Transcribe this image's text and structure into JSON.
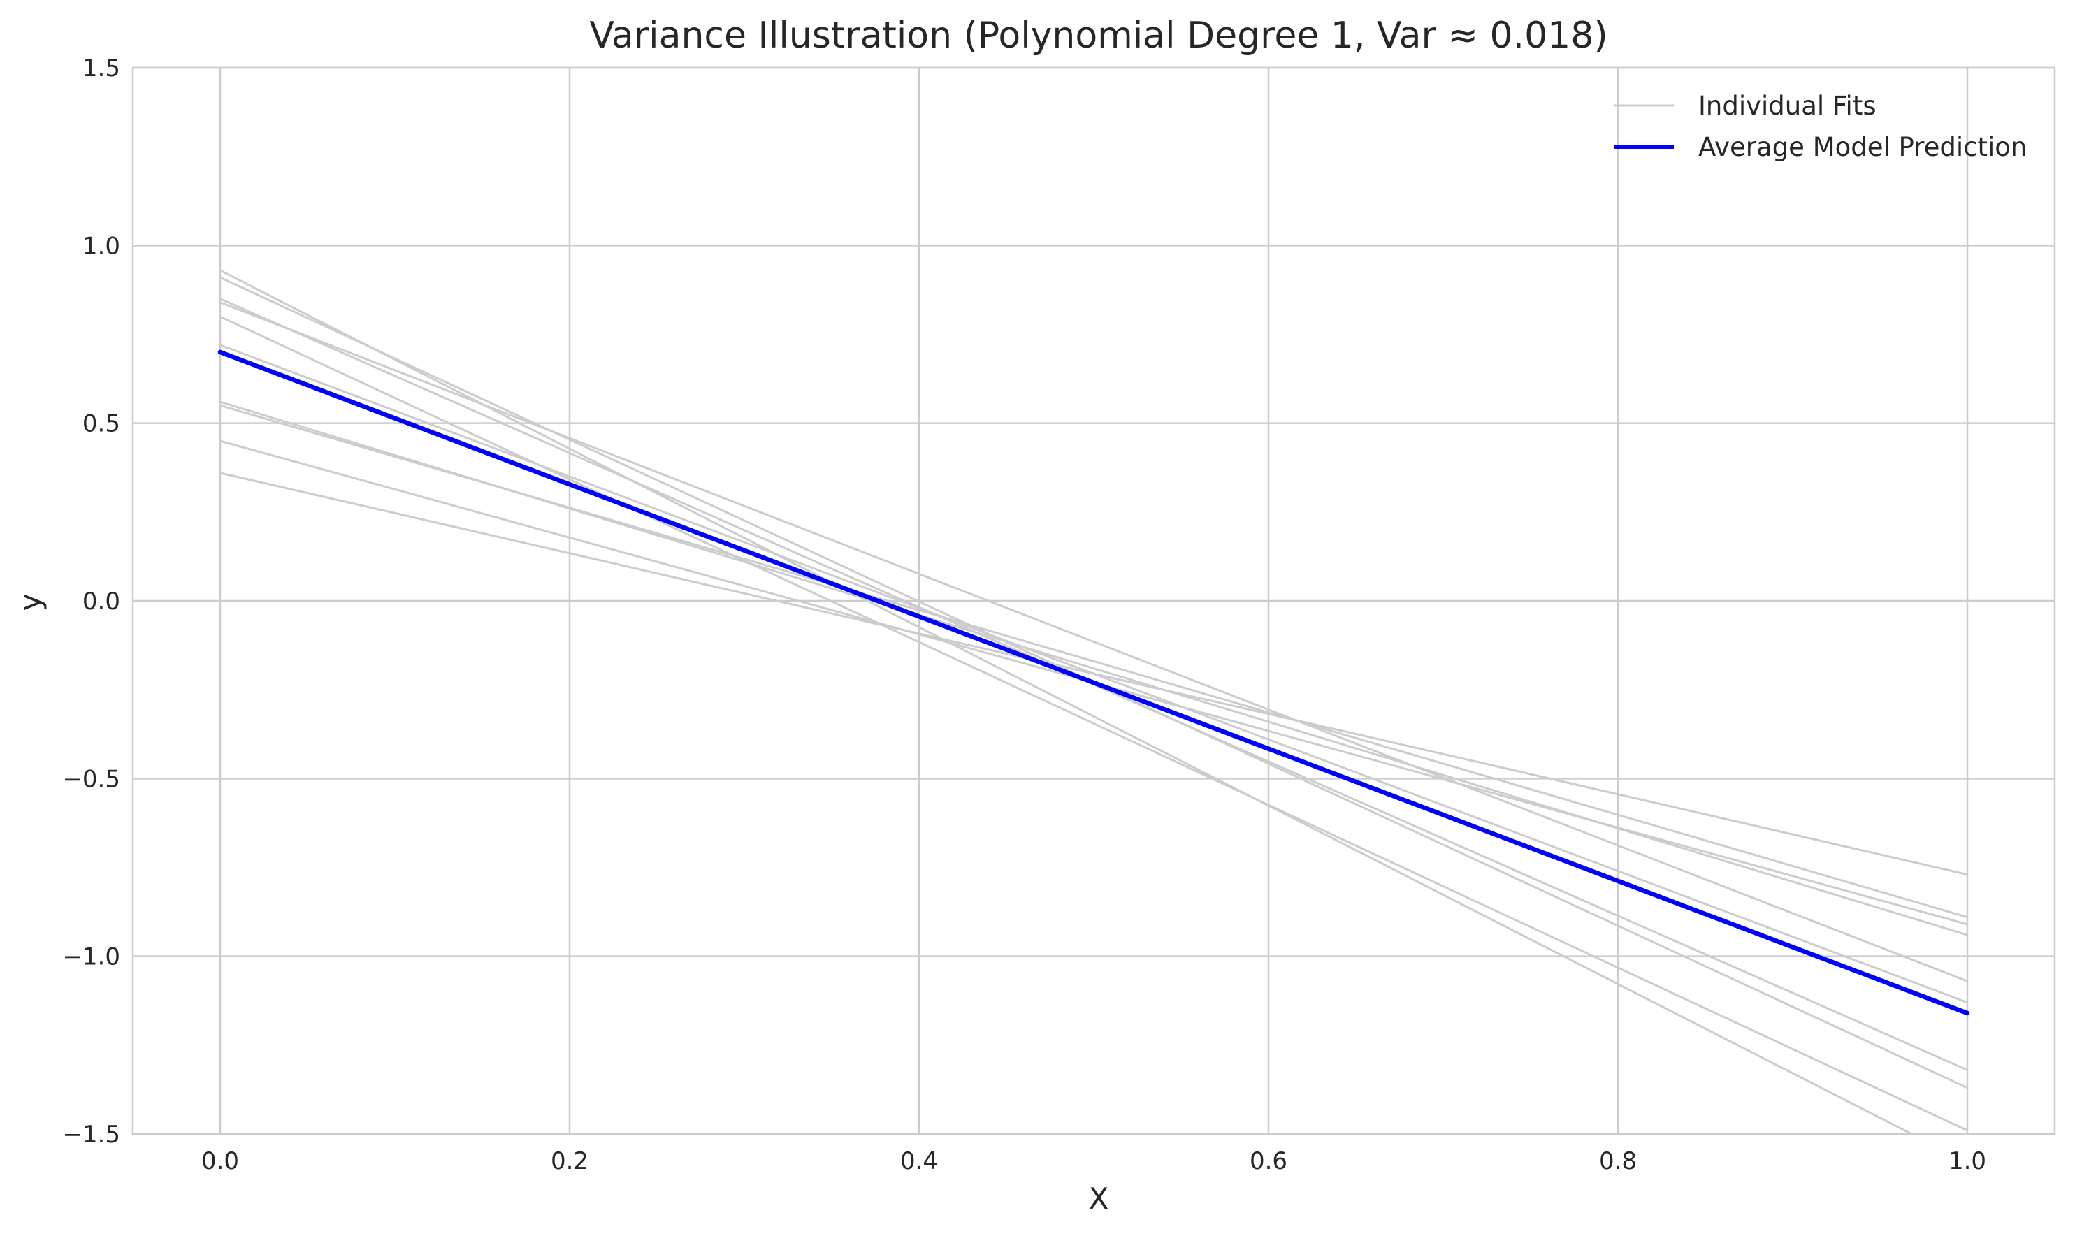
{
  "chart_data": {
    "type": "line",
    "title": "Variance Illustration (Polynomial Degree 1, Var ≈ 0.018)",
    "xlabel": "X",
    "ylabel": "y",
    "xlim": [
      -0.05,
      1.05
    ],
    "ylim": [
      -1.5,
      1.5
    ],
    "xticks": [
      0.0,
      0.2,
      0.4,
      0.6,
      0.8,
      1.0
    ],
    "xtick_labels": [
      "0.0",
      "0.2",
      "0.4",
      "0.6",
      "0.8",
      "1.0"
    ],
    "yticks": [
      -1.5,
      -1.0,
      -0.5,
      0.0,
      0.5,
      1.0,
      1.5
    ],
    "ytick_labels": [
      "−1.5",
      "−1.0",
      "−0.5",
      "0.0",
      "0.5",
      "1.0",
      "1.5"
    ],
    "grid": true,
    "legend": {
      "placement": "top-right",
      "entries": [
        "Individual Fits",
        "Average Model Prediction"
      ]
    },
    "individual_fits": {
      "name": "Individual Fits",
      "color": "#cccccc",
      "lines": [
        {
          "x": [
            0.0,
            1.0
          ],
          "y": [
            0.93,
            -1.58
          ]
        },
        {
          "x": [
            0.0,
            1.0
          ],
          "y": [
            0.91,
            -1.37
          ]
        },
        {
          "x": [
            0.0,
            1.0
          ],
          "y": [
            0.85,
            -1.32
          ]
        },
        {
          "x": [
            0.0,
            1.0
          ],
          "y": [
            0.84,
            -1.07
          ]
        },
        {
          "x": [
            0.0,
            1.0
          ],
          "y": [
            0.8,
            -1.49
          ]
        },
        {
          "x": [
            0.0,
            1.0
          ],
          "y": [
            0.72,
            -1.13
          ]
        },
        {
          "x": [
            0.0,
            1.0
          ],
          "y": [
            0.56,
            -0.94
          ]
        },
        {
          "x": [
            0.0,
            1.0
          ],
          "y": [
            0.55,
            -0.89
          ]
        },
        {
          "x": [
            0.0,
            1.0
          ],
          "y": [
            0.45,
            -0.91
          ]
        },
        {
          "x": [
            0.0,
            1.0
          ],
          "y": [
            0.36,
            -0.77
          ]
        }
      ]
    },
    "average": {
      "name": "Average Model Prediction",
      "color": "#0000ff",
      "x": [
        0.0,
        1.0
      ],
      "y": [
        0.7,
        -1.16
      ]
    }
  }
}
